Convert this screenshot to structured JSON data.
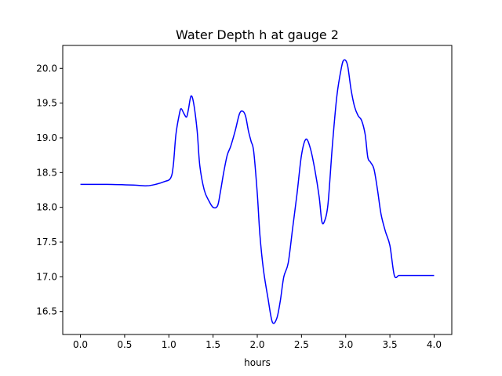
{
  "chart_data": {
    "type": "line",
    "title": "Water Depth h at gauge 2",
    "xlabel": "hours",
    "ylabel": "",
    "xlim": [
      -0.2,
      4.2
    ],
    "ylim": [
      16.17,
      20.33
    ],
    "xticks": [
      0.0,
      0.5,
      1.0,
      1.5,
      2.0,
      2.5,
      3.0,
      3.5,
      4.0
    ],
    "xtick_labels": [
      "0.0",
      "0.5",
      "1.0",
      "1.5",
      "2.0",
      "2.5",
      "3.0",
      "3.5",
      "4.0"
    ],
    "yticks": [
      16.5,
      17.0,
      17.5,
      18.0,
      18.5,
      19.0,
      19.5,
      20.0
    ],
    "ytick_labels": [
      "16.5",
      "17.0",
      "17.5",
      "18.0",
      "18.5",
      "19.0",
      "19.5",
      "20.0"
    ],
    "grid": false,
    "series": [
      {
        "color": "#0000ff",
        "x": [
          0.0,
          0.3,
          0.6,
          0.75,
          0.85,
          0.95,
          1.02,
          1.05,
          1.08,
          1.12,
          1.14,
          1.17,
          1.2,
          1.22,
          1.25,
          1.28,
          1.32,
          1.35,
          1.4,
          1.45,
          1.5,
          1.55,
          1.58,
          1.62,
          1.66,
          1.7,
          1.75,
          1.8,
          1.84,
          1.87,
          1.9,
          1.93,
          1.96,
          2.0,
          2.03,
          2.07,
          2.12,
          2.17,
          2.22,
          2.26,
          2.3,
          2.35,
          2.4,
          2.45,
          2.5,
          2.55,
          2.6,
          2.65,
          2.7,
          2.73,
          2.76,
          2.8,
          2.85,
          2.9,
          2.95,
          2.98,
          3.02,
          3.06,
          3.1,
          3.14,
          3.18,
          3.22,
          3.25,
          3.28,
          3.32,
          3.36,
          3.4,
          3.45,
          3.5,
          3.55,
          3.6,
          3.63,
          3.67,
          3.72,
          3.76,
          3.8,
          3.85,
          3.9,
          3.95,
          4.0
        ],
        "y": [
          18.33,
          18.33,
          18.32,
          18.31,
          18.33,
          18.37,
          18.42,
          18.6,
          19.05,
          19.35,
          19.42,
          19.35,
          19.3,
          19.4,
          19.6,
          19.5,
          19.1,
          18.6,
          18.25,
          18.1,
          18.0,
          18.02,
          18.2,
          18.5,
          18.75,
          18.88,
          19.1,
          19.35,
          19.38,
          19.3,
          19.1,
          18.95,
          18.8,
          18.2,
          17.6,
          17.1,
          16.7,
          16.35,
          16.4,
          16.65,
          17.0,
          17.2,
          17.7,
          18.2,
          18.75,
          18.98,
          18.85,
          18.55,
          18.15,
          17.8,
          17.8,
          18.05,
          18.9,
          19.6,
          20.0,
          20.12,
          20.05,
          19.7,
          19.45,
          19.32,
          19.25,
          19.05,
          18.72,
          18.65,
          18.55,
          18.25,
          17.9,
          17.65,
          17.45,
          17.02,
          17.02,
          17.02,
          17.02,
          17.02,
          17.02,
          17.02,
          17.02,
          17.02,
          17.02,
          17.02
        ]
      }
    ]
  }
}
